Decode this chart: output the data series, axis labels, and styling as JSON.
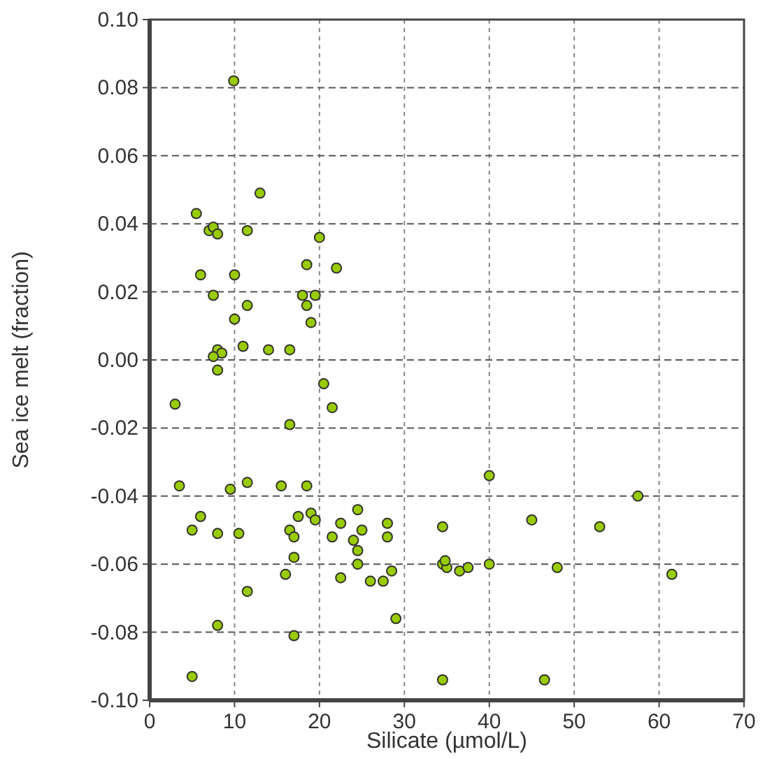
{
  "chart_data": {
    "type": "scatter",
    "xlabel": "Silicate (µmol/L)",
    "ylabel": "Sea ice melt (fraction)",
    "marker": "circle",
    "grid": true,
    "xlim": [
      0,
      70
    ],
    "xticks": [
      0,
      10,
      20,
      30,
      40,
      50,
      60,
      70
    ],
    "ylim": [
      -0.1,
      0.1
    ],
    "yticks": [
      {
        "value": -0.1,
        "label": "-0.10"
      },
      {
        "value": -0.08,
        "label": "-0.08"
      },
      {
        "value": -0.06,
        "label": "-0.06"
      },
      {
        "value": -0.04,
        "label": "-0.04"
      },
      {
        "value": -0.02,
        "label": "-0.02"
      },
      {
        "value": 0,
        "label": "0.00"
      },
      {
        "value": 0.02,
        "label": "0.02"
      },
      {
        "value": 0.04,
        "label": "0.04"
      },
      {
        "value": 0.06,
        "label": "0.06"
      },
      {
        "value": 0.08,
        "label": "0.08"
      },
      {
        "value": 0.1,
        "label": "0.10"
      }
    ],
    "series": [
      {
        "color": "#99cc00",
        "x": [
          9.9,
          13,
          5.5,
          7,
          7.5,
          8,
          11.5,
          20,
          10,
          6,
          18.5,
          22,
          7.5,
          10,
          11.5,
          18,
          19.5,
          18.5,
          19,
          8,
          8.5,
          7.5,
          11,
          14,
          16.5,
          8,
          20.5,
          3,
          21.5,
          16.5,
          3.5,
          9.5,
          11.5,
          15.5,
          18.5,
          40,
          57.5,
          6,
          5,
          8,
          10.5,
          17.5,
          19,
          19.5,
          16.5,
          17,
          22.5,
          24.5,
          25,
          21.5,
          24,
          24.5,
          28,
          28,
          34.5,
          45,
          53,
          17,
          24.5,
          16,
          22.5,
          26,
          27.5,
          28.5,
          34.5,
          35,
          34.8,
          36.5,
          37.5,
          40,
          48,
          61.5,
          11.5,
          29,
          8,
          17,
          5,
          34.5,
          46.5
        ],
        "values": [
          0.082,
          0.049,
          0.043,
          0.038,
          0.039,
          0.037,
          0.038,
          0.036,
          0.025,
          0.025,
          0.028,
          0.027,
          0.019,
          0.012,
          0.016,
          0.019,
          0.019,
          0.016,
          0.011,
          0.003,
          0.002,
          0.001,
          0.004,
          0.003,
          0.003,
          -0.003,
          -0.007,
          -0.013,
          -0.014,
          -0.019,
          -0.037,
          -0.038,
          -0.036,
          -0.037,
          -0.037,
          -0.034,
          -0.04,
          -0.046,
          -0.05,
          -0.051,
          -0.051,
          -0.046,
          -0.045,
          -0.047,
          -0.05,
          -0.052,
          -0.048,
          -0.044,
          -0.05,
          -0.052,
          -0.053,
          -0.056,
          -0.048,
          -0.052,
          -0.049,
          -0.047,
          -0.049,
          -0.058,
          -0.06,
          -0.063,
          -0.064,
          -0.065,
          -0.065,
          -0.062,
          -0.06,
          -0.061,
          -0.059,
          -0.062,
          -0.061,
          -0.06,
          -0.061,
          -0.063,
          -0.068,
          -0.076,
          -0.078,
          -0.081,
          -0.093,
          -0.094,
          -0.094
        ]
      }
    ]
  }
}
